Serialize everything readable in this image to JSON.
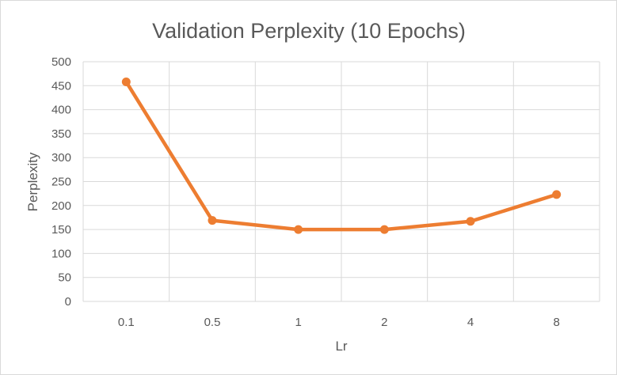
{
  "chart_data": {
    "type": "line",
    "title": "Validation Perplexity (10 Epochs)",
    "xlabel": "Lr",
    "ylabel": "Perplexity",
    "categories": [
      "0.1",
      "0.5",
      "1",
      "2",
      "4",
      "8"
    ],
    "series": [
      {
        "values": [
          458,
          169,
          150,
          150,
          167,
          223
        ],
        "color": "#ED7D31"
      }
    ],
    "ylim": [
      0,
      500
    ],
    "yticks": [
      "0",
      "50",
      "100",
      "150",
      "200",
      "250",
      "300",
      "350",
      "400",
      "450",
      "500"
    ],
    "grid": true,
    "legend": "none"
  }
}
